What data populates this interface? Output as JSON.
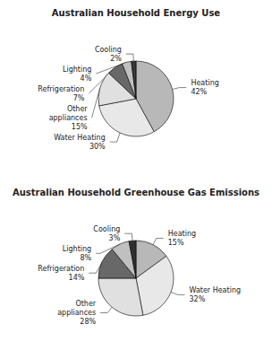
{
  "chart_data": [
    {
      "type": "pie",
      "title": "Australian Household Energy Use",
      "categories": [
        "Heating",
        "Water Heating",
        "Other\nappliances",
        "Refrigeration",
        "Lighting",
        "Cooling"
      ],
      "values": [
        42,
        30,
        15,
        7,
        4,
        2
      ],
      "value_labels": [
        "42%",
        "30%",
        "15%",
        "7%",
        "4%",
        "2%"
      ],
      "data_labels": true,
      "colors": [
        "#b8b8b8",
        "#e8e8e8",
        "#e0e0e0",
        "#686868",
        "#c0c0c0",
        "#383838"
      ]
    },
    {
      "type": "pie",
      "title": "Australian Household Greenhouse Gas Emissions",
      "categories": [
        "Heating",
        "Water Heating",
        "Other\nappliances",
        "Refrigeration",
        "Lighting",
        "Cooling"
      ],
      "values": [
        15,
        32,
        28,
        14,
        8,
        3
      ],
      "value_labels": [
        "15%",
        "32%",
        "28%",
        "14%",
        "8%",
        "3%"
      ],
      "data_labels": true,
      "colors": [
        "#b8b8b8",
        "#e8e8e8",
        "#e0e0e0",
        "#686868",
        "#c0c0c0",
        "#303030"
      ]
    }
  ]
}
